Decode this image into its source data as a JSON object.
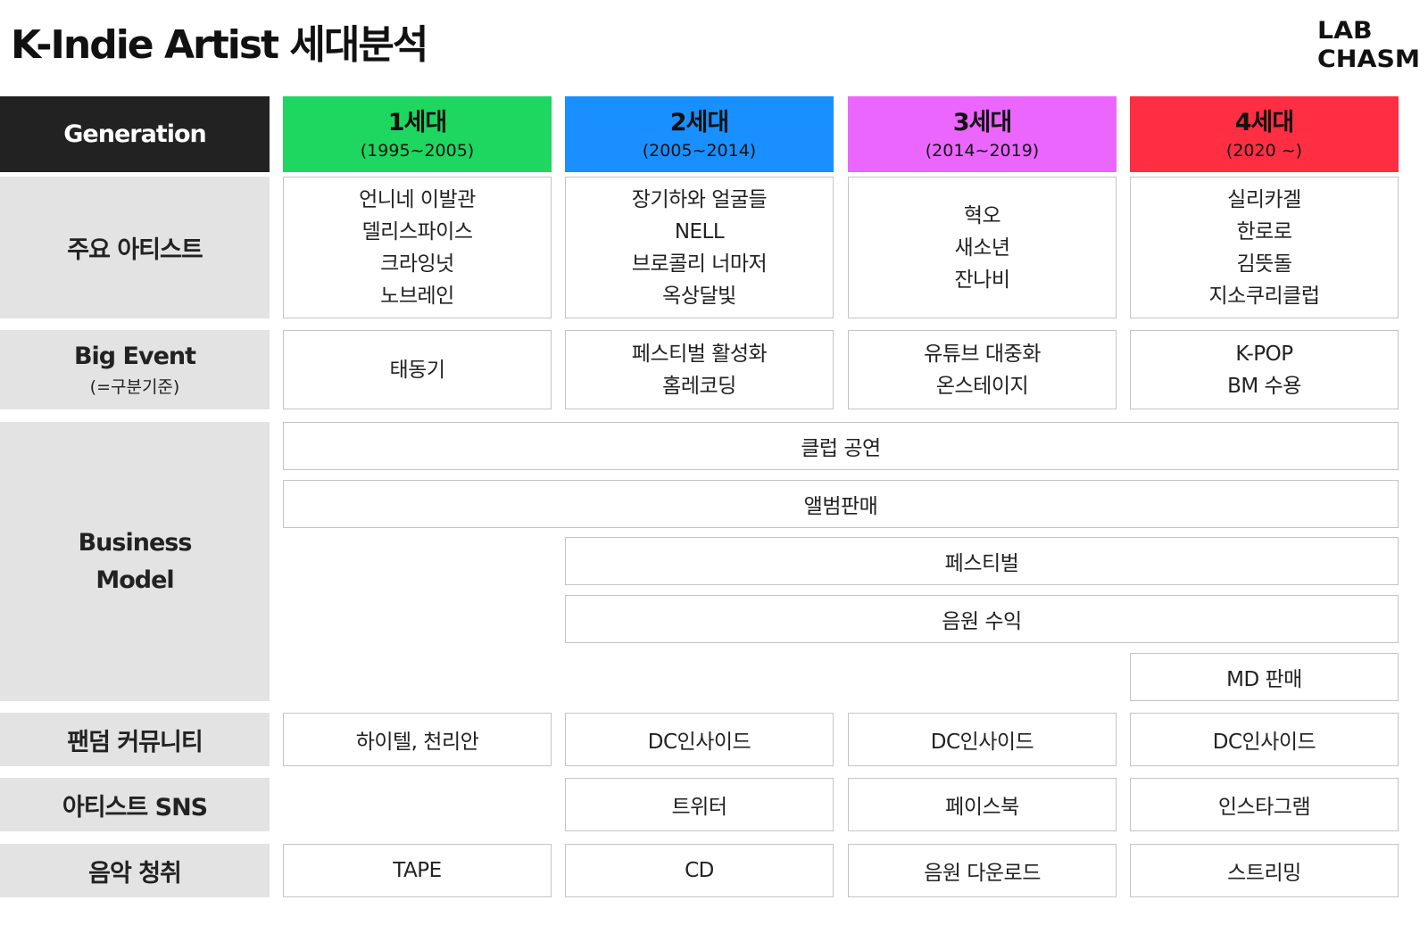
{
  "title": "K-Indie Artist 세대분석",
  "logo": {
    "line1": "LAB",
    "line2": "CHASM"
  },
  "header_label": "Generation",
  "generations": [
    {
      "name": "1세대",
      "period": "(1995~2005)",
      "color": "#1ed760"
    },
    {
      "name": "2세대",
      "period": "(2005~2014)",
      "color": "#1a8fff"
    },
    {
      "name": "3세대",
      "period": "(2014~2019)",
      "color": "#ea66ff"
    },
    {
      "name": "4세대",
      "period": "(2020 ~)",
      "color": "#ff2e42"
    }
  ],
  "rows": {
    "artists": {
      "label": "주요 아티스트",
      "cells": [
        [
          "언니네 이발관",
          "델리스파이스",
          "크라잉넛",
          "노브레인"
        ],
        [
          "장기하와 얼굴들",
          "NELL",
          "브로콜리 너마저",
          "옥상달빛"
        ],
        [
          "혁오",
          "새소년",
          "잔나비"
        ],
        [
          "실리카겔",
          "한로로",
          "김뜻돌",
          "지소쿠리클럽"
        ]
      ]
    },
    "big_event": {
      "label": "Big Event",
      "sublabel": "(=구분기준)",
      "cells": [
        [
          "태동기"
        ],
        [
          "페스티벌 활성화",
          "홈레코딩"
        ],
        [
          "유튜브 대중화",
          "온스테이지"
        ],
        [
          "K-POP",
          "BM 수용"
        ]
      ]
    },
    "business_model": {
      "label_line1": "Business",
      "label_line2": "Model",
      "bars": [
        "클럽 공연",
        "앨범판매",
        "페스티벌",
        "음원 수익",
        "MD 판매"
      ]
    },
    "fandom": {
      "label": "팬덤 커뮤니티",
      "cells": [
        "하이텔, 천리안",
        "DC인사이드",
        "DC인사이드",
        "DC인사이드"
      ]
    },
    "sns": {
      "label": "아티스트 SNS",
      "cells": [
        "트위터",
        "페이스북",
        "인스타그램"
      ]
    },
    "listening": {
      "label": "음악 청취",
      "cells": [
        "TAPE",
        "CD",
        "음원 다운로드",
        "스트리밍"
      ]
    }
  }
}
